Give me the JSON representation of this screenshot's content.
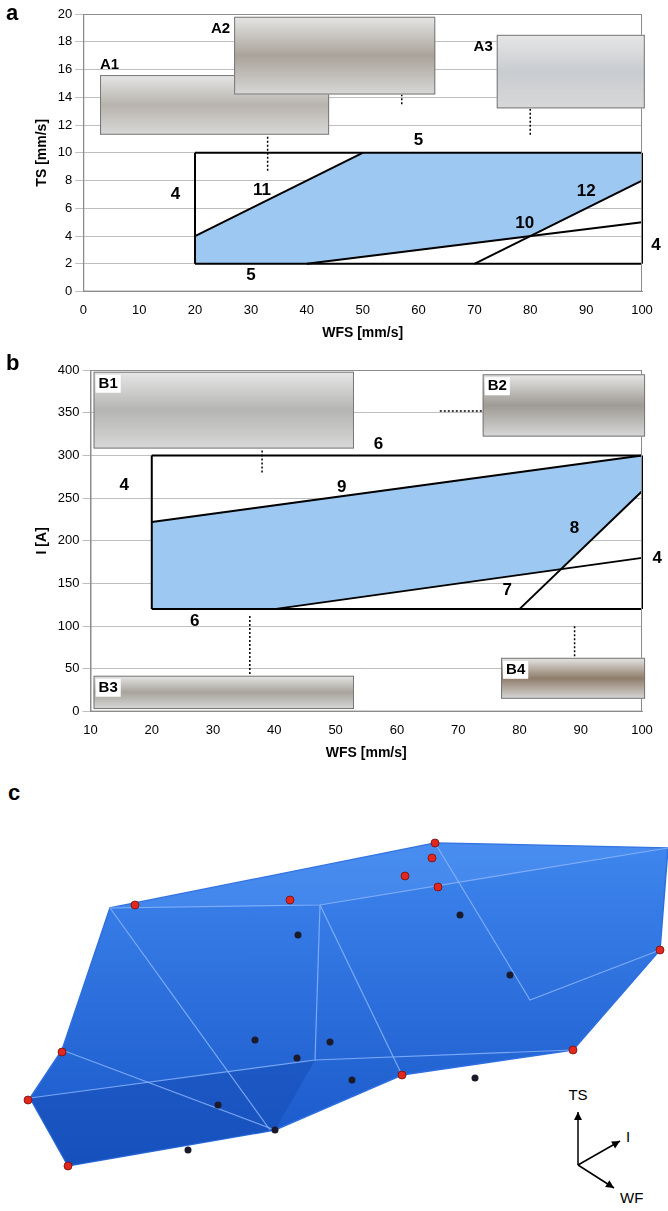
{
  "chart_data": [
    {
      "type": "line",
      "letter": "a",
      "x_label": "WFS [mm/s]",
      "y_label": "TS [mm/s]",
      "xlim": [
        0,
        100
      ],
      "xticks": [
        0,
        10,
        20,
        30,
        40,
        50,
        60,
        70,
        80,
        90,
        100
      ],
      "ylim": [
        0,
        20
      ],
      "yticks": [
        0,
        2,
        4,
        6,
        8,
        10,
        12,
        14,
        16,
        18,
        20
      ],
      "grid": true,
      "color": "#000000",
      "region": {
        "color": "#9cc8f2",
        "x": [
          20,
          40,
          80,
          100,
          100,
          50,
          20
        ],
        "y": [
          2,
          2,
          4,
          8,
          10,
          10,
          4
        ]
      },
      "series": [
        {
          "name": "4",
          "x": [
            20,
            20
          ],
          "values": [
            2,
            10
          ],
          "label_x": 16.5,
          "label_y": 7
        },
        {
          "name": "4",
          "x": [
            100,
            100
          ],
          "values": [
            2,
            10
          ],
          "label_x": 102.5,
          "label_y": 3.3
        },
        {
          "name": "5",
          "x": [
            20,
            100
          ],
          "values": [
            10,
            10
          ],
          "label_x": 60,
          "label_y": 10.9
        },
        {
          "name": "5",
          "x": [
            20,
            100
          ],
          "values": [
            2,
            2
          ],
          "label_x": 30,
          "label_y": 1.2
        },
        {
          "name": "11",
          "x": [
            20,
            50
          ],
          "values": [
            4,
            10
          ],
          "label_x": 32,
          "label_y": 7.3
        },
        {
          "name": "12",
          "x": [
            70,
            100
          ],
          "values": [
            2,
            8
          ],
          "label_x": 90,
          "label_y": 7.2
        },
        {
          "name": "10",
          "x": [
            40,
            100
          ],
          "values": [
            2,
            5
          ],
          "label_x": 79,
          "label_y": 4.9
        }
      ],
      "insets": [
        {
          "label": "A1",
          "x": 33,
          "y": 8.7
        },
        {
          "label": "A2",
          "x": 57,
          "y": 13.5
        },
        {
          "label": "A3",
          "x": 80,
          "y": 11.3
        }
      ]
    },
    {
      "type": "line",
      "letter": "b",
      "x_label": "WFS [mm/s]",
      "y_label": "I [A]",
      "xlim": [
        10,
        100
      ],
      "xticks": [
        10,
        20,
        30,
        40,
        50,
        60,
        70,
        80,
        90,
        100
      ],
      "ylim": [
        0,
        400
      ],
      "yticks": [
        0,
        50,
        100,
        150,
        200,
        250,
        300,
        350,
        400
      ],
      "grid": true,
      "color": "#000000",
      "region": {
        "color": "#9cc8f2",
        "x": [
          20,
          40,
          86.8,
          100,
          100,
          20
        ],
        "y": [
          120,
          120,
          166.8,
          258,
          300,
          222
        ]
      },
      "series": [
        {
          "name": "4",
          "x": [
            20,
            20
          ],
          "values": [
            120,
            300
          ],
          "label_x": 15.5,
          "label_y": 265
        },
        {
          "name": "4",
          "x": [
            100,
            100
          ],
          "values": [
            120,
            300
          ],
          "label_x": 102.5,
          "label_y": 180
        },
        {
          "name": "6",
          "x": [
            20,
            100
          ],
          "values": [
            300,
            300
          ],
          "label_x": 57,
          "label_y": 313
        },
        {
          "name": "6",
          "x": [
            20,
            100
          ],
          "values": [
            120,
            120
          ],
          "label_x": 27,
          "label_y": 106
        },
        {
          "name": "9",
          "x": [
            20,
            100
          ],
          "values": [
            222,
            300
          ],
          "label_x": 51,
          "label_y": 263
        },
        {
          "name": "7",
          "x": [
            40,
            100
          ],
          "values": [
            120,
            180
          ],
          "label_x": 78,
          "label_y": 142
        },
        {
          "name": "8",
          "x": [
            80,
            100
          ],
          "values": [
            120,
            258
          ],
          "label_x": 89,
          "label_y": 215
        }
      ],
      "insets": [
        {
          "label": "B1",
          "x": 38,
          "y": 280
        },
        {
          "label": "B2",
          "x": 67,
          "y": 352
        },
        {
          "label": "B3",
          "x": 36,
          "y": 112
        },
        {
          "label": "B4",
          "x": 89,
          "y": 100
        }
      ]
    },
    {
      "type": "diagram",
      "letter": "c",
      "axes": [
        "TS",
        "I",
        "WF"
      ]
    }
  ]
}
